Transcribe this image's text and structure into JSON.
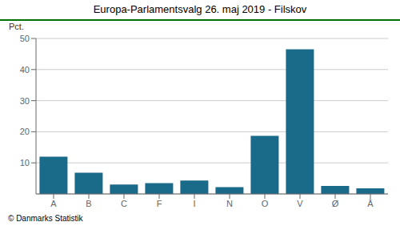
{
  "chart_data": {
    "type": "bar",
    "title": "Europa-Parlamentsvalg 26. maj 2019 - Filskov",
    "ylabel": "Pct.",
    "annotations": [
      "© Danmarks Statistik"
    ],
    "categories": [
      "A",
      "B",
      "C",
      "F",
      "I",
      "N",
      "O",
      "V",
      "Ø",
      "Å"
    ],
    "values": [
      12.0,
      6.8,
      3.0,
      3.5,
      4.3,
      2.2,
      18.7,
      46.5,
      2.6,
      1.8
    ],
    "color": "#1a6b8a",
    "ylim": [
      0,
      50
    ],
    "yticks": [
      10,
      20,
      30,
      40,
      50
    ],
    "grid": true
  }
}
